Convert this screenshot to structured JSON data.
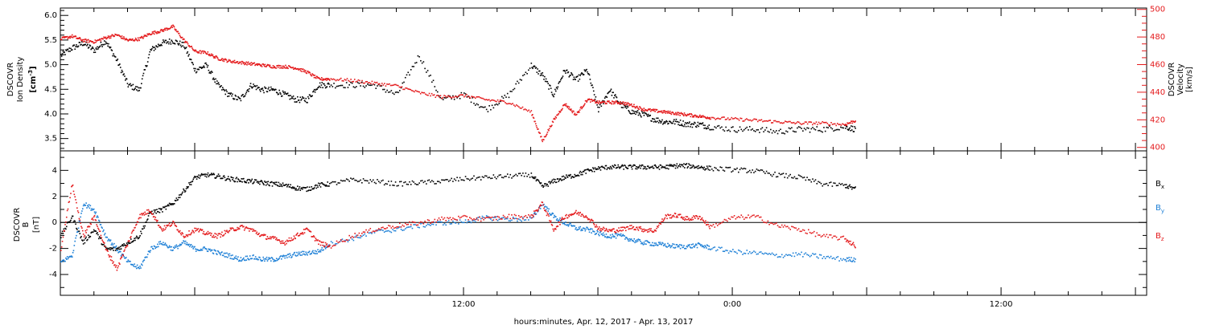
{
  "chart_data": [
    {
      "type": "scatter",
      "panel": "top",
      "xlabel": "hours:minutes, Apr. 12, 2017 - Apr. 13, 2017",
      "x_unit": "hours since 2017-04-12 00:00",
      "xlim": [
        -6.0,
        42.5
      ],
      "x_tick_labels": [
        {
          "x": 12,
          "label": "12:00"
        },
        {
          "x": 24,
          "label": "0:00"
        },
        {
          "x": 36,
          "label": "12:00"
        }
      ],
      "left_axis": {
        "label_lines": [
          "DSCOVR",
          "Ion Density"
        ],
        "unit_label": [
          "[cm",
          "-3",
          "]"
        ],
        "ylim": [
          3.25,
          6.15
        ],
        "ticks": [
          "3.5",
          "4.0",
          "4.5",
          "5.0",
          "5.5",
          "6.0"
        ],
        "tick_values": [
          3.5,
          4.0,
          4.5,
          5.0,
          5.5,
          6.0
        ],
        "color": "#000000"
      },
      "right_axis": {
        "label_lines": [
          "DSCOVR",
          "Velocity",
          "[km/s]"
        ],
        "ylim": [
          397.5,
          501
        ],
        "ticks": [
          "400",
          "420",
          "440",
          "460",
          "480",
          "500"
        ],
        "tick_values": [
          400,
          420,
          440,
          460,
          480,
          500
        ],
        "color": "#e41a1c"
      },
      "series": [
        {
          "color": "#000000",
          "axis": "left",
          "x": [
            -6.0,
            -5.5,
            -5.0,
            -4.5,
            -4.0,
            -3.5,
            -3.0,
            -2.5,
            -2.0,
            -1.5,
            -1.0,
            -0.5,
            0.0,
            0.5,
            1.0,
            1.5,
            2.0,
            2.5,
            3.0,
            3.5,
            4.0,
            4.5,
            5.0,
            5.5,
            6.0,
            7.0,
            8.0,
            9.0,
            10.0,
            11.0,
            12.0,
            13.0,
            14.0,
            15.0,
            15.5,
            16.0,
            16.5,
            17.0,
            17.5,
            18.0,
            18.5,
            19.0,
            19.5,
            20.0,
            20.5,
            21.0,
            21.5,
            22.0,
            22.5,
            23.0,
            24.0,
            25.0,
            26.0,
            27.0,
            28.0,
            29.0,
            29.5
          ],
          "y": [
            5.2,
            5.35,
            5.45,
            5.3,
            5.5,
            5.1,
            4.6,
            4.5,
            5.3,
            5.45,
            5.5,
            5.4,
            4.9,
            5.0,
            4.6,
            4.4,
            4.3,
            4.6,
            4.5,
            4.5,
            4.4,
            4.3,
            4.3,
            4.6,
            4.6,
            4.6,
            4.6,
            4.4,
            5.2,
            4.3,
            4.4,
            4.1,
            4.4,
            5.0,
            4.8,
            4.4,
            4.9,
            4.7,
            4.9,
            4.1,
            4.5,
            4.2,
            4.05,
            4.0,
            3.9,
            3.85,
            3.85,
            3.8,
            3.8,
            3.75,
            3.7,
            3.7,
            3.65,
            3.7,
            3.7,
            3.75,
            3.7
          ]
        },
        {
          "color": "#e41a1c",
          "axis": "right",
          "x": [
            -6.0,
            -5.5,
            -5.0,
            -4.5,
            -4.0,
            -3.5,
            -3.0,
            -2.5,
            -2.0,
            -1.5,
            -1.0,
            -0.5,
            0.0,
            0.5,
            1.0,
            1.5,
            2.0,
            2.5,
            3.0,
            3.5,
            4.0,
            4.5,
            5.0,
            5.5,
            6.0,
            7.0,
            8.0,
            9.0,
            10.0,
            11.0,
            12.0,
            13.0,
            14.0,
            15.0,
            15.5,
            16.0,
            16.5,
            17.0,
            17.5,
            18.0,
            18.5,
            19.0,
            19.5,
            20.0,
            20.5,
            21.0,
            21.5,
            22.0,
            22.5,
            23.0,
            24.0,
            25.0,
            26.0,
            27.0,
            28.0,
            29.0,
            29.5
          ],
          "y": [
            479,
            481,
            478,
            477,
            480,
            482,
            478,
            479,
            483,
            485,
            488,
            478,
            470,
            469,
            465,
            463,
            462,
            461,
            460,
            459,
            459,
            458,
            455,
            450,
            450,
            449,
            447,
            445,
            440,
            437,
            438,
            435,
            433,
            426,
            405,
            420,
            432,
            424,
            435,
            433,
            433,
            433,
            431,
            428,
            427,
            426,
            425,
            424,
            423,
            422,
            421,
            420,
            419,
            418,
            418,
            417,
            420
          ]
        }
      ]
    },
    {
      "type": "scatter",
      "panel": "bottom",
      "xlim": [
        -6.0,
        42.5
      ],
      "left_axis": {
        "label_lines": [
          "DSCOVR",
          "B"
        ],
        "unit_label": "[nT]",
        "ylim": [
          -5.6,
          5.5
        ],
        "ticks": [
          "-4",
          "-2",
          "0",
          "2",
          "4"
        ],
        "tick_values": [
          -4,
          -2,
          0,
          2,
          4
        ]
      },
      "zero_line": true,
      "series": [
        {
          "name": "B",
          "subscript": "x",
          "color": "#000000",
          "x": [
            -6.0,
            -5.5,
            -5.0,
            -4.5,
            -4.0,
            -3.5,
            -3.0,
            -2.5,
            -2.0,
            -1.5,
            -1.0,
            -0.5,
            0.0,
            0.5,
            1.0,
            1.5,
            2.0,
            2.5,
            3.0,
            3.5,
            4.0,
            4.5,
            5.0,
            5.5,
            6.0,
            7.0,
            8.0,
            9.0,
            10.0,
            11.0,
            12.0,
            13.0,
            14.0,
            15.0,
            15.5,
            16.0,
            16.5,
            17.0,
            17.5,
            18.0,
            18.5,
            19.0,
            19.5,
            20.0,
            20.5,
            21.0,
            21.5,
            22.0,
            22.5,
            23.0,
            24.0,
            25.0,
            26.0,
            27.0,
            28.0,
            29.0,
            29.5
          ],
          "y": [
            -1.0,
            0.5,
            -1.5,
            -0.5,
            -2.0,
            -2.0,
            -1.5,
            -1.0,
            0.8,
            1.0,
            1.5,
            2.5,
            3.5,
            3.7,
            3.6,
            3.4,
            3.3,
            3.2,
            3.1,
            3.0,
            2.9,
            2.7,
            2.6,
            2.9,
            3.0,
            3.3,
            3.2,
            3.0,
            3.1,
            3.2,
            3.4,
            3.5,
            3.6,
            3.7,
            2.8,
            3.2,
            3.5,
            3.7,
            4.0,
            4.2,
            4.3,
            4.3,
            4.3,
            4.3,
            4.3,
            4.3,
            4.4,
            4.4,
            4.3,
            4.2,
            4.1,
            4.0,
            3.7,
            3.5,
            3.0,
            2.9,
            2.6
          ]
        },
        {
          "name": "B",
          "subscript": "y",
          "color": "#1c7fd6",
          "x": [
            -6.0,
            -5.5,
            -5.0,
            -4.5,
            -4.0,
            -3.5,
            -3.0,
            -2.5,
            -2.0,
            -1.5,
            -1.0,
            -0.5,
            0.0,
            0.5,
            1.0,
            1.5,
            2.0,
            2.5,
            3.0,
            3.5,
            4.0,
            4.5,
            5.0,
            5.5,
            6.0,
            7.0,
            8.0,
            9.0,
            10.0,
            11.0,
            12.0,
            13.0,
            14.0,
            15.0,
            15.5,
            16.0,
            16.5,
            17.0,
            17.5,
            18.0,
            18.5,
            19.0,
            19.5,
            20.0,
            20.5,
            21.0,
            21.5,
            22.0,
            22.5,
            23.0,
            24.0,
            25.0,
            26.0,
            27.0,
            28.0,
            29.0,
            29.5
          ],
          "y": [
            -3.0,
            -2.5,
            1.5,
            1.0,
            -1.0,
            -2.0,
            -3.0,
            -3.5,
            -2.0,
            -1.5,
            -2.0,
            -1.5,
            -2.0,
            -2.0,
            -2.3,
            -2.5,
            -2.8,
            -2.6,
            -2.8,
            -2.8,
            -2.6,
            -2.4,
            -2.3,
            -2.2,
            -1.6,
            -1.2,
            -0.7,
            -0.5,
            -0.2,
            0.0,
            0.1,
            0.4,
            0.3,
            0.3,
            1.5,
            0.5,
            0.0,
            -0.4,
            -0.5,
            -0.8,
            -1.0,
            -1.0,
            -1.3,
            -1.5,
            -1.6,
            -1.7,
            -1.8,
            -1.8,
            -1.7,
            -1.9,
            -2.2,
            -2.3,
            -2.5,
            -2.4,
            -2.6,
            -2.8,
            -2.8
          ]
        },
        {
          "name": "B",
          "subscript": "z",
          "color": "#e41a1c",
          "x": [
            -6.0,
            -5.5,
            -5.0,
            -4.5,
            -4.0,
            -3.5,
            -3.0,
            -2.5,
            -2.0,
            -1.5,
            -1.0,
            -0.5,
            0.0,
            0.5,
            1.0,
            1.5,
            2.0,
            2.5,
            3.0,
            3.5,
            4.0,
            4.5,
            5.0,
            5.5,
            6.0,
            7.0,
            8.0,
            9.0,
            10.0,
            11.0,
            12.0,
            13.0,
            14.0,
            15.0,
            15.5,
            16.0,
            16.5,
            17.0,
            17.5,
            18.0,
            18.5,
            19.0,
            19.5,
            20.0,
            20.5,
            21.0,
            21.5,
            22.0,
            22.5,
            23.0,
            24.0,
            25.0,
            26.0,
            27.0,
            28.0,
            29.0,
            29.5
          ],
          "y": [
            -2.0,
            3.0,
            -1.0,
            0.5,
            -2.0,
            -3.5,
            -1.5,
            0.5,
            1.0,
            -0.5,
            0.0,
            -1.0,
            -0.5,
            -0.8,
            -1.0,
            -0.6,
            -0.3,
            -0.5,
            -1.0,
            -1.2,
            -1.5,
            -1.0,
            -0.5,
            -1.5,
            -1.8,
            -1.0,
            -0.5,
            -0.2,
            0.0,
            0.3,
            0.4,
            0.3,
            0.5,
            0.5,
            1.5,
            -0.5,
            0.5,
            0.8,
            0.5,
            -0.4,
            -0.6,
            -0.5,
            -0.3,
            -0.5,
            -0.6,
            0.5,
            0.6,
            0.3,
            0.5,
            -0.3,
            0.4,
            0.5,
            -0.2,
            -0.5,
            -1.0,
            -1.2,
            -1.8
          ]
        }
      ],
      "legend": [
        {
          "text": "B",
          "sub": "x",
          "color": "#000000"
        },
        {
          "text": "B",
          "sub": "y",
          "color": "#1c7fd6"
        },
        {
          "text": "B",
          "sub": "z",
          "color": "#e41a1c"
        }
      ]
    }
  ]
}
